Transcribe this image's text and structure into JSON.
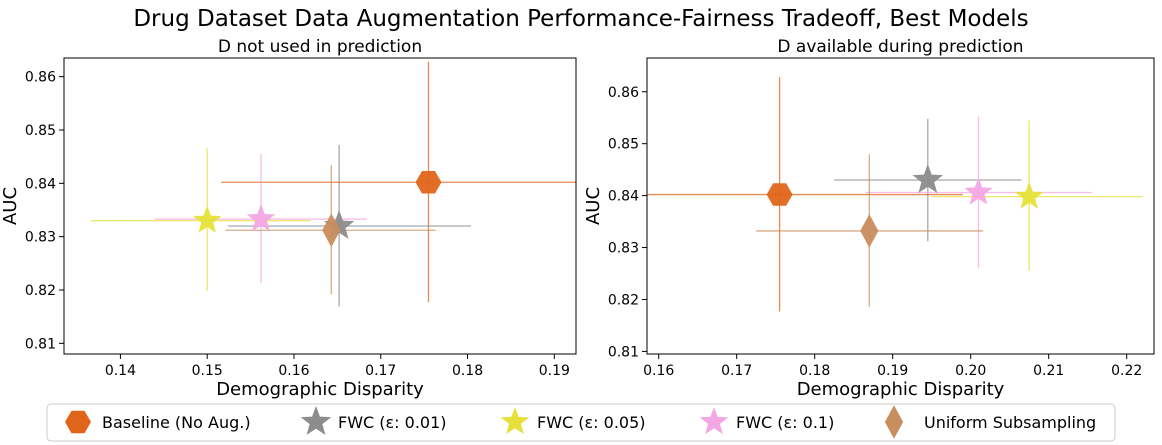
{
  "suptitle": "Drug Dataset Data Augmentation Performance-Fairness Tradeoff, Best Models",
  "legend": {
    "placement": "bottom",
    "entries": [
      {
        "label": "Baseline (No Aug.)",
        "marker": "hexagon",
        "color": "#e0651a"
      },
      {
        "label": "FWC (ε: 0.01)",
        "marker": "star",
        "color": "#8c8c8c"
      },
      {
        "label": "FWC (ε: 0.05)",
        "marker": "star",
        "color": "#e6e13a"
      },
      {
        "label": "FWC (ε: 0.1)",
        "marker": "star",
        "color": "#f3a8e4"
      },
      {
        "label": "Uniform Subsampling",
        "marker": "diamond",
        "color": "#c98e5e"
      }
    ]
  },
  "chart_data": [
    {
      "type": "scatter",
      "title": "D not used in prediction",
      "xlabel": "Demographic Disparity",
      "ylabel": "AUC",
      "xlim": [
        0.1335,
        0.1925
      ],
      "ylim": [
        0.808,
        0.8635
      ],
      "xticks": [
        "0.14",
        "0.15",
        "0.16",
        "0.17",
        "0.18",
        "0.19"
      ],
      "yticks": [
        "0.81",
        "0.82",
        "0.83",
        "0.84",
        "0.85",
        "0.86"
      ],
      "grid": false,
      "series": [
        {
          "name": "Baseline (No Aug.)",
          "x": 0.1755,
          "y": 0.8402,
          "xerr": [
            0.1516,
            0.196
          ],
          "yerr": [
            0.8177,
            0.8628
          ]
        },
        {
          "name": "FWC (ε: 0.01)",
          "x": 0.1652,
          "y": 0.832,
          "xerr": [
            0.1524,
            0.1804
          ],
          "yerr": [
            0.8169,
            0.8472
          ]
        },
        {
          "name": "FWC (ε: 0.05)",
          "x": 0.15,
          "y": 0.833,
          "xerr": [
            0.1366,
            0.1619
          ],
          "yerr": [
            0.8198,
            0.8466
          ]
        },
        {
          "name": "FWC (ε: 0.1)",
          "x": 0.1562,
          "y": 0.8333,
          "xerr": [
            0.144,
            0.1684
          ],
          "yerr": [
            0.8213,
            0.8455
          ]
        },
        {
          "name": "Uniform Subsampling",
          "x": 0.1643,
          "y": 0.8312,
          "xerr": [
            0.1521,
            0.1763
          ],
          "yerr": [
            0.8192,
            0.8434
          ]
        }
      ]
    },
    {
      "type": "scatter",
      "title": "D available during prediction",
      "xlabel": "Demographic Disparity",
      "ylabel": "AUC",
      "xlim": [
        0.1585,
        0.2235
      ],
      "ylim": [
        0.8095,
        0.8665
      ],
      "xticks": [
        "0.16",
        "0.17",
        "0.18",
        "0.19",
        "0.20",
        "0.21",
        "0.22"
      ],
      "yticks": [
        "0.81",
        "0.82",
        "0.83",
        "0.84",
        "0.85",
        "0.86"
      ],
      "grid": false,
      "series": [
        {
          "name": "Baseline (No Aug.)",
          "x": 0.1755,
          "y": 0.8402,
          "xerr": [
            0.152,
            0.199
          ],
          "yerr": [
            0.8177,
            0.8628
          ]
        },
        {
          "name": "FWC (ε: 0.01)",
          "x": 0.1945,
          "y": 0.843,
          "xerr": [
            0.1825,
            0.2065
          ],
          "yerr": [
            0.8312,
            0.8548
          ]
        },
        {
          "name": "FWC (ε: 0.05)",
          "x": 0.2075,
          "y": 0.8398,
          "xerr": [
            0.195,
            0.222
          ],
          "yerr": [
            0.8255,
            0.8545
          ]
        },
        {
          "name": "FWC (ε: 0.1)",
          "x": 0.201,
          "y": 0.8406,
          "xerr": [
            0.1865,
            0.2155
          ],
          "yerr": [
            0.826,
            0.8552
          ]
        },
        {
          "name": "Uniform Subsampling",
          "x": 0.187,
          "y": 0.8332,
          "xerr": [
            0.1725,
            0.2016
          ],
          "yerr": [
            0.8186,
            0.848
          ]
        }
      ]
    }
  ]
}
